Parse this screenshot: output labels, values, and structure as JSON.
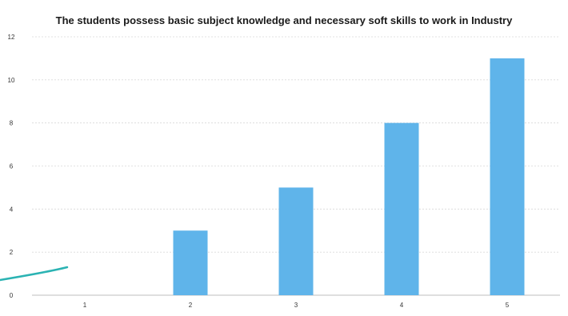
{
  "chart_data": {
    "type": "bar",
    "title": "The students possess basic subject knowledge and necessary soft skills to work in Industry",
    "categories": [
      "1",
      "2",
      "3",
      "4",
      "5"
    ],
    "values": [
      0,
      3,
      5,
      8,
      11
    ],
    "ylim": [
      0,
      12
    ],
    "yticks": [
      "0",
      "2",
      "4",
      "6",
      "8",
      "10",
      "12"
    ],
    "xlabel": "",
    "ylabel": "",
    "grid": true,
    "bar_color": "#5fb4ea"
  }
}
